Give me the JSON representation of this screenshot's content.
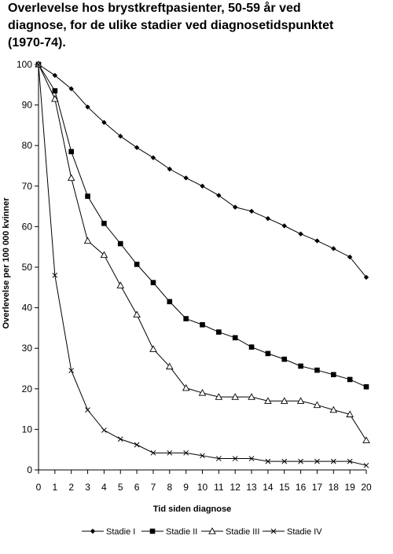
{
  "chart_data": {
    "type": "line",
    "title_lines": [
      "Overlevelse hos brystkreftpasienter, 50-59 år ved",
      "diagnose, for de ulike stadier ved diagnosetidspunktet",
      "(1970-74)."
    ],
    "xlabel": "Tid siden diagnose",
    "ylabel": "Overlevelse per 100 000 kvinner",
    "x": [
      0,
      1,
      2,
      3,
      4,
      5,
      6,
      7,
      8,
      9,
      10,
      11,
      12,
      13,
      14,
      15,
      16,
      17,
      18,
      19,
      20
    ],
    "xlim": [
      0,
      20
    ],
    "ylim": [
      0,
      100
    ],
    "yticks": [
      0,
      10,
      20,
      30,
      40,
      50,
      60,
      70,
      80,
      90,
      100
    ],
    "grid": false,
    "legend_position": "bottom",
    "series": [
      {
        "name": "Stadie I",
        "marker": "diamond",
        "values": [
          100,
          97.3,
          94,
          89.5,
          85.7,
          82.3,
          79.5,
          77,
          74.2,
          72,
          70,
          67.7,
          64.8,
          63.8,
          62,
          60.2,
          58.2,
          56.5,
          54.6,
          52.5,
          47.5
        ]
      },
      {
        "name": "Stadie II",
        "marker": "square",
        "values": [
          100,
          93.5,
          78.5,
          67.5,
          60.8,
          55.8,
          50.7,
          46.2,
          41.5,
          37.3,
          35.8,
          34,
          32.6,
          30.3,
          28.7,
          27.3,
          25.6,
          24.6,
          23.5,
          22.3,
          20.5
        ]
      },
      {
        "name": "Stadie III",
        "marker": "triangle",
        "values": [
          100,
          91.5,
          72,
          56.5,
          53,
          45.5,
          38.3,
          29.8,
          25.5,
          20.2,
          19,
          18,
          18,
          18,
          17,
          17,
          17,
          16,
          14.8,
          13.7,
          7.3
        ]
      },
      {
        "name": "Stadie IV",
        "marker": "x",
        "values": [
          100,
          48,
          24.5,
          14.8,
          9.8,
          7.6,
          6.2,
          4.2,
          4.2,
          4.2,
          3.5,
          2.8,
          2.8,
          2.8,
          2.1,
          2.1,
          2.1,
          2.1,
          2.1,
          2.1,
          1.1
        ]
      }
    ]
  }
}
